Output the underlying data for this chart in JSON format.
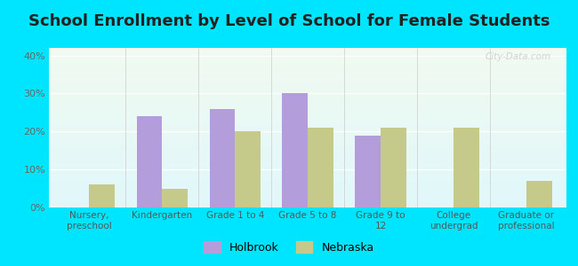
{
  "title": "School Enrollment by Level of School for Female Students",
  "categories": [
    "Nursery,\npreschool",
    "Kindergarten",
    "Grade 1 to 4",
    "Grade 5 to 8",
    "Grade 9 to\n12",
    "College\nundergrad",
    "Graduate or\nprofessional"
  ],
  "holbrook": [
    0,
    24,
    26,
    30,
    19,
    0,
    0
  ],
  "nebraska": [
    6,
    5,
    20,
    21,
    21,
    21,
    7
  ],
  "holbrook_color": "#b39ddb",
  "nebraska_color": "#c5c98a",
  "background_outer": "#00e5ff",
  "background_inner_top": "#f0faf0",
  "background_inner_bottom": "#e0f7fa",
  "ylim": [
    0,
    42
  ],
  "yticks": [
    0,
    10,
    20,
    30,
    40
  ],
  "ytick_labels": [
    "0%",
    "10%",
    "20%",
    "30%",
    "40%"
  ],
  "bar_width": 0.35,
  "title_fontsize": 13,
  "legend_labels": [
    "Holbrook",
    "Nebraska"
  ],
  "watermark": "City-Data.com"
}
